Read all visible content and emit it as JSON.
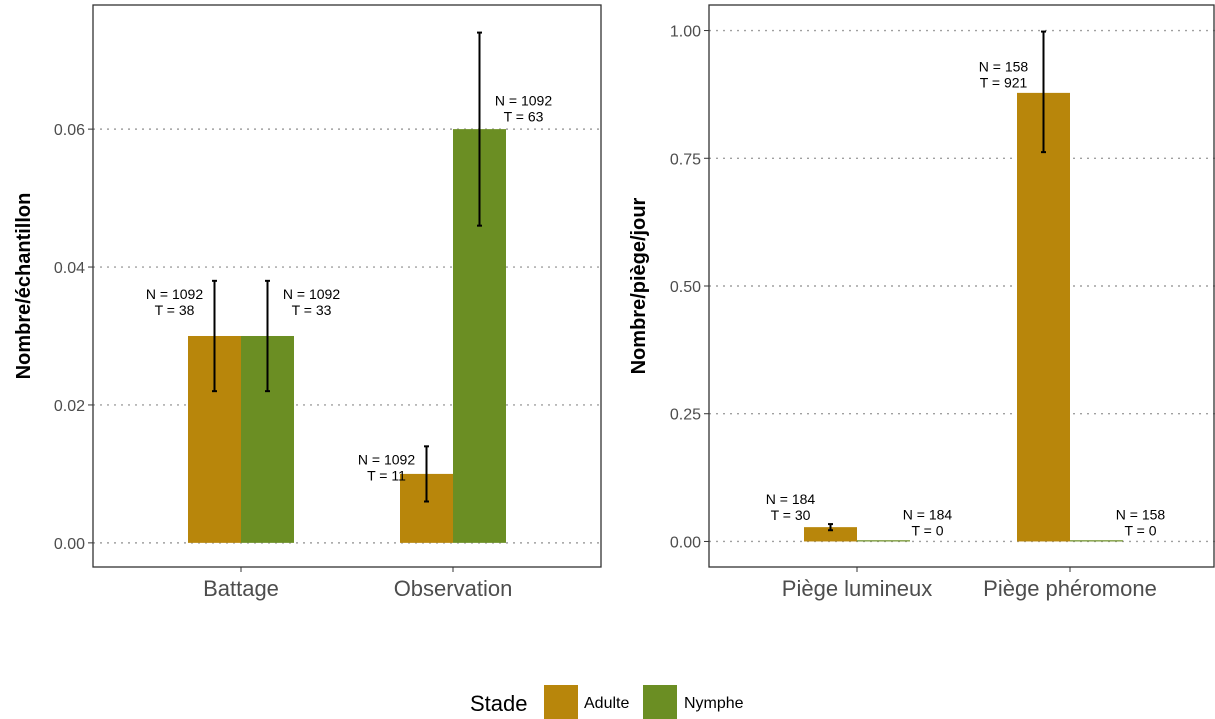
{
  "legend": {
    "title": "Stade",
    "items": [
      {
        "label": "Adulte",
        "color": "#B8860B"
      },
      {
        "label": "Nymphe",
        "color": "#6B8E23"
      }
    ]
  },
  "chart_data": [
    {
      "type": "bar",
      "ylabel": "Nombre/échantillon",
      "xlabel": "",
      "ylim": [
        -0.0035,
        0.078
      ],
      "yticks": [
        0.0,
        0.02,
        0.04,
        0.06
      ],
      "ytick_labels": [
        "0.00",
        "0.02",
        "0.04",
        "0.06"
      ],
      "grid": "horizontal-dotted",
      "categories": [
        "Battage",
        "Observation"
      ],
      "series": [
        {
          "name": "Adulte",
          "values": [
            0.03,
            0.01
          ],
          "err_low": [
            0.022,
            0.006
          ],
          "err_high": [
            0.038,
            0.014
          ],
          "labels": [
            [
              "N = 1092",
              "T = 38"
            ],
            [
              "N = 1092",
              "T = 11"
            ]
          ]
        },
        {
          "name": "Nymphe",
          "values": [
            0.03,
            0.06
          ],
          "err_low": [
            0.022,
            0.046
          ],
          "err_high": [
            0.038,
            0.074
          ],
          "labels": [
            [
              "N = 1092",
              "T = 33"
            ],
            [
              "N = 1092",
              "T = 63"
            ]
          ]
        }
      ]
    },
    {
      "type": "bar",
      "ylabel": "Nombre/piège/jour",
      "xlabel": "",
      "ylim": [
        -0.05,
        1.05
      ],
      "yticks": [
        0.0,
        0.25,
        0.5,
        0.75,
        1.0
      ],
      "ytick_labels": [
        "0.00",
        "0.25",
        "0.50",
        "0.75",
        "1.00"
      ],
      "grid": "horizontal-dotted",
      "categories": [
        "Piège lumineux",
        "Piège phéromone"
      ],
      "series": [
        {
          "name": "Adulte",
          "values": [
            0.028,
            0.878
          ],
          "err_low": [
            0.022,
            0.762
          ],
          "err_high": [
            0.034,
            0.998
          ],
          "labels": [
            [
              "N = 184",
              "T = 30"
            ],
            [
              "N = 158",
              "T = 921"
            ]
          ]
        },
        {
          "name": "Nymphe",
          "values": [
            0.0,
            0.0
          ],
          "err_low": [
            0.0,
            0.0
          ],
          "err_high": [
            0.0,
            0.0
          ],
          "labels": [
            [
              "N = 184",
              "T = 0"
            ],
            [
              "N = 158",
              "T = 0"
            ]
          ]
        }
      ]
    }
  ]
}
